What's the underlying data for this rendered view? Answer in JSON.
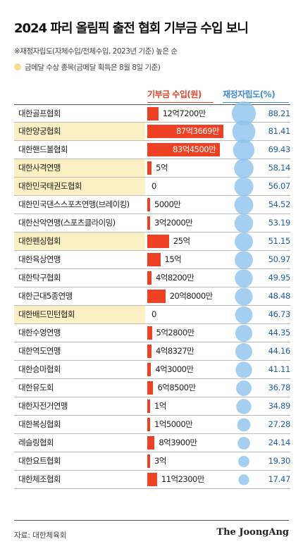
{
  "title": "2024 파리 올림픽 출전 협회 기부금 수입 보니",
  "note_ratio": "※재정자립도(자체수입/전체수입, 2023년 기준) 높은 순",
  "note_gold": "금메달 수상 종목(금메달 획득은 8월 8일 기준)",
  "colors": {
    "bar": "#ee4023",
    "bubble": "#8dc3ec",
    "highlight": "#fbefc4"
  },
  "chart_data": {
    "type": "bar",
    "title": "2024 파리 올림픽 출전 협회 기부금 수입 보니",
    "series": [
      {
        "name": "기부금 수입(원)",
        "values": [
          1272000000,
          8736690000,
          8345000000,
          500000000,
          0,
          50000000,
          320000000,
          2500000000,
          1500000000,
          482000000,
          2080000000,
          0,
          528000000,
          483270000,
          430000000,
          685000000,
          100000000,
          150000000,
          839000000,
          300000000,
          1123000000
        ]
      },
      {
        "name": "재정자립도(%)",
        "values": [
          88.21,
          81.41,
          69.43,
          58.14,
          56.07,
          54.52,
          53.19,
          51.15,
          50.97,
          49.95,
          48.48,
          46.73,
          44.35,
          44.16,
          41.11,
          36.78,
          34.89,
          27.28,
          24.14,
          19.3,
          17.47
        ]
      }
    ],
    "categories": [
      "대한골프협회",
      "대한양궁협회",
      "대한핸드볼협회",
      "대한사격연맹",
      "대한민국태권도협회",
      "대한민국댄스스포츠연맹(브레이킹)",
      "대한산악연맹(스포츠클라이밍)",
      "대한펜싱협회",
      "대한육상연맹",
      "대한탁구협회",
      "대한근대5종연맹",
      "대한배드민턴협회",
      "대한수영연맹",
      "대한역도연맹",
      "대한승마협회",
      "대한유도회",
      "대한자전거연맹",
      "대한복싱협회",
      "레슬링협회",
      "대한요트협회",
      "대한체조협회"
    ],
    "donation_labels": [
      "12억7200만",
      "87억3669만",
      "83억4500만",
      "5억",
      "0",
      "5000만",
      "3억2000만",
      "25억",
      "15억",
      "4억8200만",
      "20억8000만",
      "0",
      "5억2800만",
      "4억8327만",
      "4억3000만",
      "6억8500만",
      "1억",
      "1억5000만",
      "8억3900만",
      "3억",
      "11억2300만"
    ],
    "ratio_labels": [
      "88.21",
      "81.41",
      "69.43",
      "58.14",
      "56.07",
      "54.52",
      "53.19",
      "51.15",
      "50.97",
      "49.95",
      "48.48",
      "46.73",
      "44.35",
      "44.16",
      "41.11",
      "36.78",
      "34.89",
      "27.28",
      "24.14",
      "19.30",
      "17.47"
    ],
    "gold_medal": [
      false,
      true,
      false,
      true,
      true,
      false,
      false,
      true,
      false,
      false,
      false,
      true,
      false,
      false,
      false,
      false,
      false,
      false,
      false,
      false,
      false
    ],
    "column_headers": {
      "donation": "기부금 수입(원)",
      "ratio": "재정자립도(%)"
    }
  },
  "source": "자료: 대한체육회",
  "brand": "The JoongAng"
}
